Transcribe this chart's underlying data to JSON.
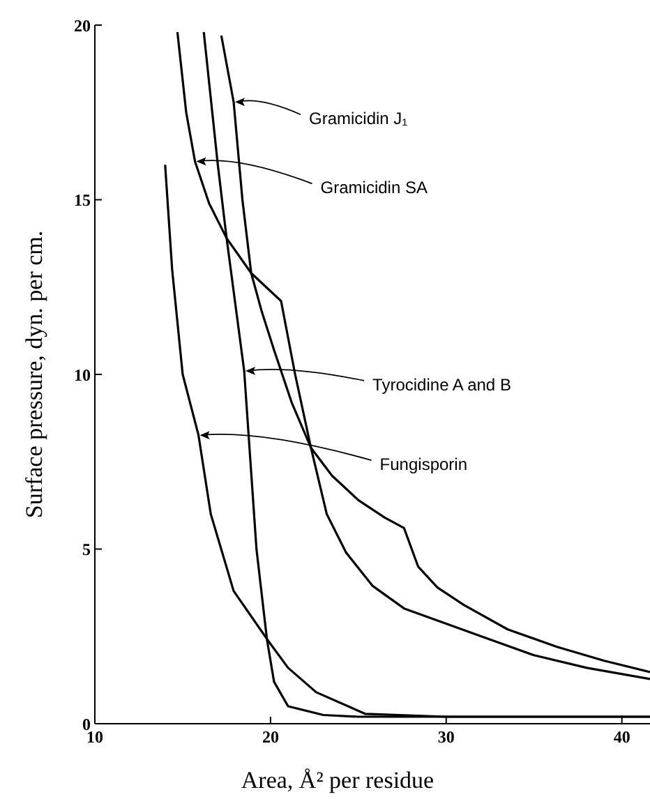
{
  "chart_data": {
    "type": "line",
    "xlabel": "Area, Å² per residue",
    "ylabel": "Surface pressure, dyn. per cm.",
    "xlim": [
      10,
      41.6
    ],
    "ylim": [
      0,
      20
    ],
    "xticks": [
      10,
      20,
      30,
      40
    ],
    "yticks": [
      0,
      5,
      10,
      15,
      20
    ],
    "grid": false,
    "legend": false,
    "marker": "none",
    "line_style": "solid",
    "series": [
      {
        "color": "#000000",
        "x": [
          17.2,
          17.9,
          18.4,
          18.9,
          19.5,
          20.2,
          21.2,
          22.3,
          23.5,
          25,
          26.5,
          27.6,
          28.4,
          29.5,
          31,
          33.5,
          36.3,
          39,
          41.6
        ],
        "values": [
          19.7,
          17.8,
          15,
          12.9,
          11.8,
          10.7,
          9.2,
          7.9,
          7.1,
          6.4,
          5.9,
          5.6,
          4.5,
          3.9,
          3.4,
          2.7,
          2.2,
          1.8,
          1.48
        ]
      },
      {
        "color": "#000000",
        "x": [
          14.7,
          15.2,
          15.7,
          16.5,
          17.5,
          18.9,
          20.6,
          21.4,
          22.3,
          23.2,
          24.3,
          25.8,
          27.6,
          29.8,
          32,
          35,
          38,
          41.6
        ],
        "values": [
          19.8,
          17.5,
          16.1,
          14.9,
          13.9,
          12.9,
          12.1,
          10,
          7.9,
          6,
          4.9,
          3.95,
          3.3,
          2.9,
          2.5,
          1.96,
          1.6,
          1.28
        ]
      },
      {
        "color": "#000000",
        "x": [
          16.2,
          17,
          17.5,
          18.5,
          19.2,
          19.8,
          20.2,
          21,
          23,
          25,
          41.6
        ],
        "values": [
          19.8,
          16,
          13.9,
          10.1,
          5,
          2.4,
          1.2,
          0.5,
          0.25,
          0.2,
          0.2
        ]
      },
      {
        "color": "#000000",
        "x": [
          14,
          14.4,
          15,
          15.9,
          16.6,
          17.9,
          19.9,
          21,
          22.6,
          25.4,
          30,
          41.6
        ],
        "values": [
          16,
          13,
          10,
          8.26,
          6,
          3.8,
          2.35,
          1.6,
          0.9,
          0.28,
          0.2,
          0.2
        ]
      }
    ],
    "annotations": [
      {
        "text": "Gramicidin J₁",
        "x": 17.9,
        "y": 17.8
      },
      {
        "text": "Gramicidin SA",
        "x": 15.7,
        "y": 16.1
      },
      {
        "text": "Tyrocidine A and B",
        "x": 18.5,
        "y": 10.1
      },
      {
        "text": "Fungisporin",
        "x": 15.9,
        "y": 8.26
      }
    ]
  }
}
